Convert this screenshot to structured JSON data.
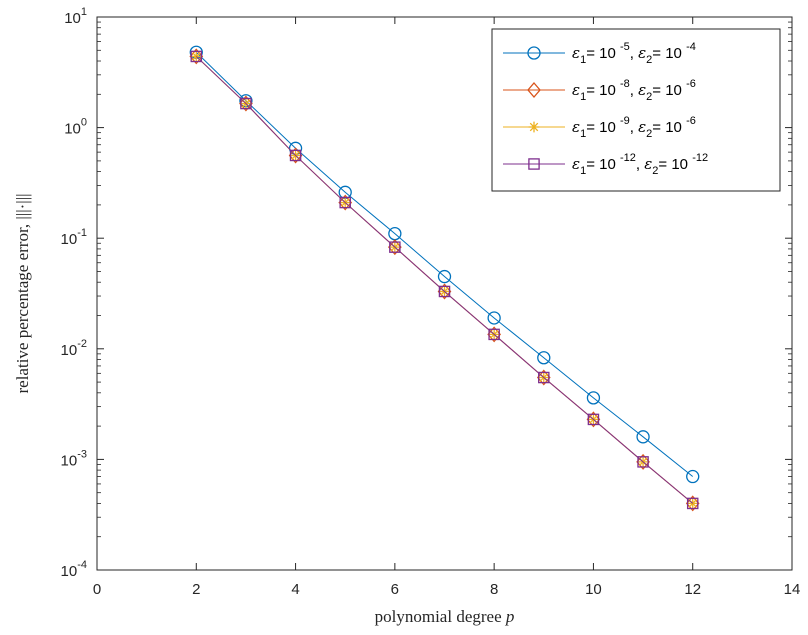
{
  "chart_data": {
    "type": "line",
    "y_scale": "log",
    "xlim": [
      0,
      14
    ],
    "ylim": [
      0.0001,
      10
    ],
    "x_ticks": [
      0,
      2,
      4,
      6,
      8,
      10,
      12,
      14
    ],
    "y_ticks": [
      {
        "base": "10",
        "exp": "-4",
        "value": 0.0001
      },
      {
        "base": "10",
        "exp": "-3",
        "value": 0.001
      },
      {
        "base": "10",
        "exp": "-2",
        "value": 0.01
      },
      {
        "base": "10",
        "exp": "-1",
        "value": 0.1
      },
      {
        "base": "10",
        "exp": "0",
        "value": 1
      },
      {
        "base": "10",
        "exp": "1",
        "value": 10
      }
    ],
    "xlabel": "polynomial degree p",
    "ylabel": "relative percentage error, |||·|||",
    "grid": false,
    "legend_position": "top-right",
    "x": [
      2,
      3,
      4,
      5,
      6,
      7,
      8,
      9,
      10,
      11,
      12
    ],
    "series": [
      {
        "label": {
          "e1_exp": "-5",
          "e2_exp": "-4"
        },
        "color": "#0072BD",
        "marker": "circle",
        "values": [
          4.8,
          1.75,
          0.65,
          0.26,
          0.11,
          0.045,
          0.019,
          0.0083,
          0.0036,
          0.0016,
          0.0007
        ]
      },
      {
        "label": {
          "e1_exp": "-8",
          "e2_exp": "-6"
        },
        "color": "#D95319",
        "marker": "diamond",
        "values": [
          4.4,
          1.65,
          0.56,
          0.21,
          0.083,
          0.033,
          0.0135,
          0.0055,
          0.0023,
          0.00095,
          0.0004
        ]
      },
      {
        "label": {
          "e1_exp": "-9",
          "e2_exp": "-6"
        },
        "color": "#EDB120",
        "marker": "asterisk",
        "values": [
          4.4,
          1.65,
          0.56,
          0.21,
          0.083,
          0.033,
          0.0135,
          0.0055,
          0.0023,
          0.00095,
          0.0004
        ]
      },
      {
        "label": {
          "e1_exp": "-12",
          "e2_exp": "-12"
        },
        "color": "#7E2F8E",
        "marker": "square",
        "values": [
          4.4,
          1.65,
          0.56,
          0.21,
          0.083,
          0.033,
          0.0135,
          0.0055,
          0.0023,
          0.00095,
          0.0004
        ]
      }
    ]
  }
}
